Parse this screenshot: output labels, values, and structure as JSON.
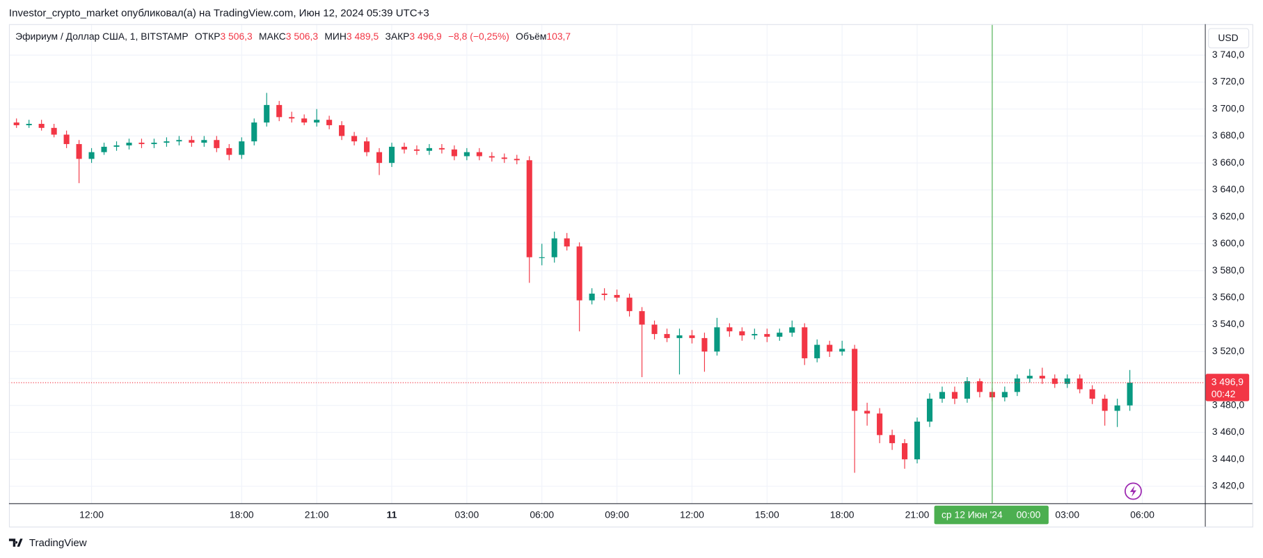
{
  "header": "Investor_crypto_market опубликовал(а) на TradingView.com, Июн 12, 2024 05:39 UTC+3",
  "footer": "TradingView",
  "chart_data": {
    "type": "candlestick",
    "symbol": "Эфириум / Доллар США, 1, BITSTAMP",
    "legend": {
      "open_label": "ОТКР",
      "open": "3 506,3",
      "high_label": "МАКС",
      "high": "3 506,3",
      "low_label": "МИН",
      "low": "3 489,5",
      "close_label": "ЗАКР",
      "close": "3 496,9",
      "change": "−8,8 (−0,25%)",
      "volume_label": "Объём",
      "volume": "103,7"
    },
    "currency": "USD",
    "up_color": "#089981",
    "down_color": "#f23645",
    "grid": true,
    "xlim": [
      8.7,
      56.5
    ],
    "xticks": [
      {
        "value": 12,
        "label": "12:00"
      },
      {
        "value": 18,
        "label": "18:00"
      },
      {
        "value": 21,
        "label": "21:00"
      },
      {
        "value": 24,
        "label": "11"
      },
      {
        "value": 27,
        "label": "03:00"
      },
      {
        "value": 30,
        "label": "06:00"
      },
      {
        "value": 33,
        "label": "09:00"
      },
      {
        "value": 36,
        "label": "12:00"
      },
      {
        "value": 39,
        "label": "15:00"
      },
      {
        "value": 42,
        "label": "18:00"
      },
      {
        "value": 45,
        "label": "21:00"
      },
      {
        "value": 51,
        "label": "03:00"
      },
      {
        "value": 54,
        "label": "06:00"
      }
    ],
    "ylim": [
      3407.4,
      3763
    ],
    "yticks": [
      {
        "value": 3420,
        "label": "3 420,0"
      },
      {
        "value": 3440,
        "label": "3 440,0"
      },
      {
        "value": 3460,
        "label": "3 460,0"
      },
      {
        "value": 3480,
        "label": "3 480,0"
      },
      {
        "value": 3500,
        "label": "3 500,0"
      },
      {
        "value": 3520,
        "label": "3 520,0"
      },
      {
        "value": 3540,
        "label": "3 540,0"
      },
      {
        "value": 3560,
        "label": "3 560,0"
      },
      {
        "value": 3580,
        "label": "3 580,0"
      },
      {
        "value": 3600,
        "label": "3 600,0"
      },
      {
        "value": 3620,
        "label": "3 620,0"
      },
      {
        "value": 3640,
        "label": "3 640,0"
      },
      {
        "value": 3660,
        "label": "3 660,0"
      },
      {
        "value": 3680,
        "label": "3 680,0"
      },
      {
        "value": 3700,
        "label": "3 700,0"
      },
      {
        "value": 3720,
        "label": "3 720,0"
      },
      {
        "value": 3740,
        "label": "3 740,0"
      }
    ],
    "crosshair": {
      "x": 48,
      "label": "ср 12 Июн '24",
      "time": "00:00",
      "color": "#4caf50"
    },
    "last_price": {
      "value": 3496.9,
      "label": "3 496,9",
      "countdown": "00:42"
    },
    "x": [
      9,
      9.5,
      10,
      10.5,
      11,
      11.5,
      12,
      12.5,
      13,
      13.5,
      14,
      14.5,
      15,
      15.5,
      16,
      16.5,
      17,
      17.5,
      18,
      18.5,
      19,
      19.5,
      20,
      20.5,
      21,
      21.5,
      22,
      22.5,
      23,
      23.5,
      24,
      24.5,
      25,
      25.5,
      26,
      26.5,
      27,
      27.5,
      28,
      28.5,
      29,
      29.5,
      30,
      30.5,
      31,
      31.5,
      32,
      32.5,
      33,
      33.5,
      34,
      34.5,
      35,
      35.5,
      36,
      36.5,
      37,
      37.5,
      38,
      38.5,
      39,
      39.5,
      40,
      40.5,
      41,
      41.5,
      42,
      42.5,
      43,
      43.5,
      44,
      44.5,
      45,
      45.5,
      46,
      46.5,
      47,
      47.5,
      48,
      48.5,
      49,
      49.5,
      50,
      50.5,
      51,
      51.5,
      52,
      52.5,
      53,
      53.5
    ],
    "open": [
      3690,
      3688,
      3689,
      3686,
      3681,
      3674,
      3663,
      3668,
      3672,
      3673,
      3675,
      3674,
      3675,
      3676,
      3677,
      3675,
      3677,
      3671,
      3666,
      3676,
      3690,
      3703,
      3694,
      3693,
      3690,
      3692,
      3688,
      3680,
      3676,
      3668,
      3660,
      3672,
      3670,
      3669,
      3671,
      3670,
      3665,
      3668,
      3665,
      3664,
      3663,
      3662,
      3590,
      3590,
      3604,
      3598,
      3558,
      3563,
      3562,
      3560,
      3550,
      3540,
      3533,
      3530,
      3532,
      3530,
      3520,
      3538,
      3535,
      3532,
      3533,
      3531,
      3534,
      3538,
      3515,
      3525,
      3520,
      3522,
      3476,
      3474,
      3458,
      3452,
      3440,
      3468,
      3485,
      3490,
      3485,
      3498,
      3490,
      3486,
      3490,
      3500,
      3502,
      3500,
      3496,
      3500,
      3492,
      3485,
      3476,
      3480
    ],
    "high": [
      3693,
      3692,
      3692,
      3689,
      3684,
      3677,
      3671,
      3675,
      3676,
      3678,
      3678,
      3678,
      3679,
      3680,
      3680,
      3680,
      3680,
      3674,
      3679,
      3693,
      3712,
      3706,
      3698,
      3696,
      3700,
      3695,
      3691,
      3683,
      3679,
      3671,
      3675,
      3675,
      3673,
      3674,
      3674,
      3673,
      3671,
      3671,
      3668,
      3667,
      3666,
      3665,
      3600,
      3609,
      3608,
      3601,
      3567,
      3567,
      3566,
      3563,
      3553,
      3543,
      3537,
      3537,
      3536,
      3534,
      3545,
      3541,
      3538,
      3537,
      3537,
      3537,
      3543,
      3541,
      3529,
      3528,
      3528,
      3525,
      3482,
      3478,
      3462,
      3455,
      3471,
      3489,
      3494,
      3494,
      3501,
      3500,
      3493,
      3494,
      3503,
      3507,
      3508,
      3503,
      3503,
      3503,
      3495,
      3488,
      3485,
      3506.3
    ],
    "low": [
      3686,
      3686,
      3684,
      3679,
      3671,
      3645,
      3660,
      3666,
      3669,
      3670,
      3671,
      3671,
      3672,
      3673,
      3672,
      3672,
      3668,
      3662,
      3663,
      3673,
      3687,
      3691,
      3690,
      3688,
      3687,
      3685,
      3677,
      3673,
      3665,
      3651,
      3657,
      3667,
      3666,
      3666,
      3667,
      3662,
      3662,
      3662,
      3661,
      3660,
      3659,
      3571,
      3584,
      3586,
      3595,
      3535,
      3555,
      3558,
      3557,
      3546,
      3501,
      3529,
      3527,
      3503,
      3526,
      3505,
      3517,
      3531,
      3528,
      3529,
      3527,
      3528,
      3531,
      3510,
      3512,
      3516,
      3517,
      3430,
      3465,
      3452,
      3447,
      3433,
      3437,
      3464,
      3482,
      3481,
      3482,
      3486,
      3483,
      3483,
      3487,
      3497,
      3496,
      3493,
      3493,
      3489,
      3481,
      3465,
      3464,
      3476
    ],
    "close": [
      3688,
      3689,
      3686,
      3681,
      3674,
      3663,
      3668,
      3672,
      3673,
      3675,
      3674,
      3675,
      3676,
      3677,
      3675,
      3677,
      3671,
      3666,
      3676,
      3690,
      3703,
      3694,
      3693,
      3690,
      3692,
      3688,
      3680,
      3676,
      3668,
      3660,
      3672,
      3670,
      3669,
      3671,
      3670,
      3665,
      3668,
      3665,
      3664,
      3663,
      3662,
      3590,
      3590,
      3604,
      3598,
      3558,
      3563,
      3562,
      3560,
      3550,
      3540,
      3533,
      3530,
      3532,
      3530,
      3520,
      3538,
      3535,
      3532,
      3533,
      3531,
      3534,
      3538,
      3515,
      3525,
      3520,
      3522,
      3476,
      3474,
      3458,
      3452,
      3440,
      3468,
      3485,
      3490,
      3485,
      3498,
      3490,
      3486,
      3490,
      3500,
      3502,
      3500,
      3496,
      3500,
      3492,
      3485,
      3476,
      3480,
      3496.9
    ]
  }
}
